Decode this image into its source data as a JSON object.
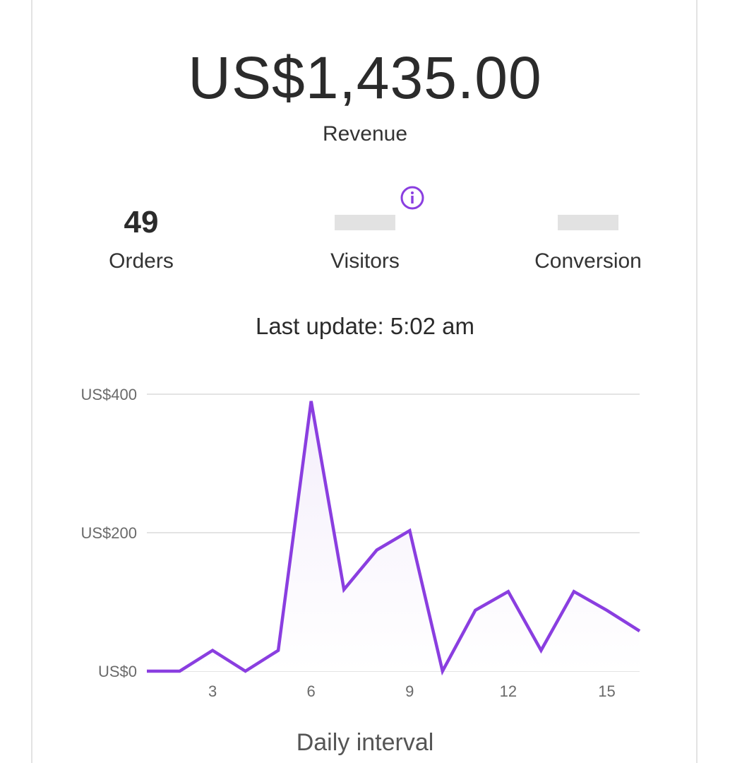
{
  "revenue": {
    "value": "US$1,435.00",
    "label": "Revenue"
  },
  "stats": {
    "orders": {
      "value": "49",
      "label": "Orders"
    },
    "visitors": {
      "value": "",
      "label": "Visitors",
      "info_icon": "info-icon"
    },
    "conversion": {
      "value": "",
      "label": "Conversion"
    }
  },
  "last_update": "Last update: 5:02 am",
  "colors": {
    "accent": "#8a3ee0",
    "area_fill": "#f4eefb",
    "grid": "#e4e4e4"
  },
  "chart_data": {
    "type": "area",
    "x": [
      1,
      2,
      3,
      4,
      5,
      6,
      7,
      8,
      9,
      10,
      11,
      12,
      13,
      14,
      15,
      16
    ],
    "values": [
      0,
      0,
      30,
      0,
      30,
      390,
      118,
      175,
      203,
      0,
      88,
      115,
      30,
      115,
      88,
      58
    ],
    "y_ticks": [
      "US$0",
      "US$200",
      "US$400"
    ],
    "y_tick_values": [
      0,
      200,
      400
    ],
    "x_ticks": [
      "3",
      "6",
      "9",
      "12",
      "15"
    ],
    "x_tick_values": [
      3,
      6,
      9,
      12,
      15
    ],
    "ylim": [
      0,
      400
    ],
    "xlim": [
      1,
      16
    ],
    "xlabel": "Daily interval",
    "ylabel": "",
    "title": "",
    "grid": true
  }
}
